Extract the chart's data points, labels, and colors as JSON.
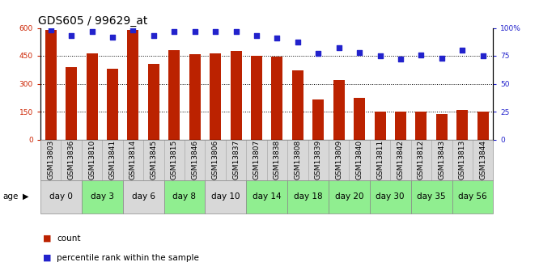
{
  "title": "GDS605 / 99629_at",
  "samples": [
    "GSM13803",
    "GSM13836",
    "GSM13810",
    "GSM13841",
    "GSM13814",
    "GSM13845",
    "GSM13815",
    "GSM13846",
    "GSM13806",
    "GSM13837",
    "GSM13807",
    "GSM13838",
    "GSM13808",
    "GSM13839",
    "GSM13809",
    "GSM13840",
    "GSM13811",
    "GSM13842",
    "GSM13812",
    "GSM13843",
    "GSM13813",
    "GSM13844"
  ],
  "counts": [
    590,
    390,
    465,
    380,
    590,
    405,
    480,
    460,
    465,
    475,
    450,
    445,
    370,
    215,
    320,
    225,
    150,
    148,
    148,
    138,
    160,
    150
  ],
  "percentile": [
    98,
    93,
    97,
    92,
    98,
    93,
    97,
    97,
    97,
    97,
    93,
    91,
    87,
    77,
    82,
    78,
    75,
    72,
    76,
    73,
    80,
    75
  ],
  "age_groups": [
    {
      "label": "day 0",
      "start": 0,
      "end": 2,
      "color": "#d8d8d8"
    },
    {
      "label": "day 3",
      "start": 2,
      "end": 4,
      "color": "#90ee90"
    },
    {
      "label": "day 6",
      "start": 4,
      "end": 6,
      "color": "#d8d8d8"
    },
    {
      "label": "day 8",
      "start": 6,
      "end": 8,
      "color": "#90ee90"
    },
    {
      "label": "day 10",
      "start": 8,
      "end": 10,
      "color": "#d8d8d8"
    },
    {
      "label": "day 14",
      "start": 10,
      "end": 12,
      "color": "#90ee90"
    },
    {
      "label": "day 18",
      "start": 12,
      "end": 14,
      "color": "#90ee90"
    },
    {
      "label": "day 20",
      "start": 14,
      "end": 16,
      "color": "#90ee90"
    },
    {
      "label": "day 30",
      "start": 16,
      "end": 18,
      "color": "#90ee90"
    },
    {
      "label": "day 35",
      "start": 18,
      "end": 20,
      "color": "#90ee90"
    },
    {
      "label": "day 56",
      "start": 20,
      "end": 22,
      "color": "#90ee90"
    }
  ],
  "gsm_bg_color": "#d8d8d8",
  "bar_color": "#bb2200",
  "dot_color": "#2222cc",
  "left_yticks": [
    0,
    150,
    300,
    450,
    600
  ],
  "right_yticks": [
    0,
    25,
    50,
    75,
    100
  ],
  "ylim_left": [
    0,
    600
  ],
  "ylim_right": [
    0,
    100
  ],
  "age_label": "age",
  "legend_count": "count",
  "legend_percentile": "percentile rank within the sample",
  "title_fontsize": 10,
  "tick_fontsize": 6.5,
  "age_fontsize": 7.5,
  "legend_fontsize": 7.5
}
